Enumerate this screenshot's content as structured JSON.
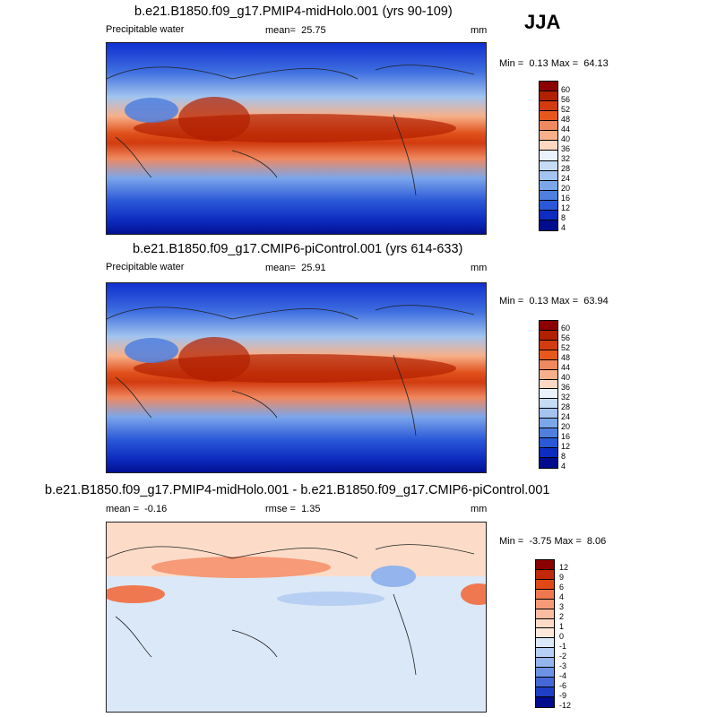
{
  "season": "JJA",
  "chart_data": [
    {
      "type": "heatmap",
      "title": "b.e21.B1850.f09_g17.PMIP4-midHolo.001 (yrs 90-109)",
      "variable": "Precipitable water",
      "units": "mm",
      "mean_label": "mean=",
      "mean": "25.75",
      "min_label": "Min =",
      "min": "0.13",
      "max_label": "Max =",
      "max": "64.13",
      "colorbar_levels": [
        "60",
        "56",
        "52",
        "48",
        "44",
        "40",
        "36",
        "32",
        "28",
        "24",
        "20",
        "16",
        "12",
        "8",
        "4"
      ],
      "colors": [
        "#8b0000",
        "#b22000",
        "#d23c10",
        "#e8581c",
        "#f08860",
        "#f7b08a",
        "#fcd8c2",
        "#eaf2fb",
        "#c6dcf4",
        "#a2c4ef",
        "#7ca6ea",
        "#4f80e0",
        "#2a58d8",
        "#0d2cc0",
        "#000c8c"
      ]
    },
    {
      "type": "heatmap",
      "title": "b.e21.B1850.f09_g17.CMIP6-piControl.001 (yrs 614-633)",
      "variable": "Precipitable water",
      "units": "mm",
      "mean_label": "mean=",
      "mean": "25.91",
      "min_label": "Min =",
      "min": "0.13",
      "max_label": "Max =",
      "max": "63.94",
      "colorbar_levels": [
        "60",
        "56",
        "52",
        "48",
        "44",
        "40",
        "36",
        "32",
        "28",
        "24",
        "20",
        "16",
        "12",
        "8",
        "4"
      ],
      "colors": [
        "#8b0000",
        "#b22000",
        "#d23c10",
        "#e8581c",
        "#f08860",
        "#f7b08a",
        "#fcd8c2",
        "#eaf2fb",
        "#c6dcf4",
        "#a2c4ef",
        "#7ca6ea",
        "#4f80e0",
        "#2a58d8",
        "#0d2cc0",
        "#000c8c"
      ]
    },
    {
      "type": "heatmap",
      "title": "b.e21.B1850.f09_g17.PMIP4-midHolo.001 - b.e21.B1850.f09_g17.CMIP6-piControl.001",
      "units": "mm",
      "mean_label": "mean =",
      "mean": "-0.16",
      "rmse_label": "rmse =",
      "rmse": "1.35",
      "min_label": "Min =",
      "min": "-3.75",
      "max_label": "Max =",
      "max": "8.06",
      "colorbar_levels": [
        "12",
        "9",
        "6",
        "4",
        "3",
        "2",
        "1",
        "0",
        "-1",
        "-2",
        "-3",
        "-4",
        "-6",
        "-9",
        "-12"
      ],
      "colors": [
        "#8b0000",
        "#c02808",
        "#e04818",
        "#f07850",
        "#f69a78",
        "#f9bca0",
        "#fcdcc8",
        "#ffe9da",
        "#dbe8f8",
        "#b7cff2",
        "#93b4ec",
        "#6c92e4",
        "#4468d8",
        "#1e3ec4",
        "#000c8c"
      ]
    }
  ]
}
